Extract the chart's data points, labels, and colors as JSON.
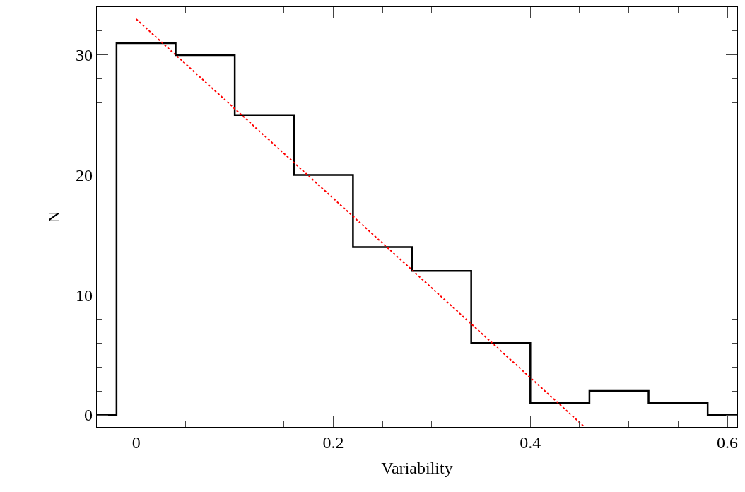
{
  "chart_data": {
    "type": "histogram",
    "xlabel": "Variability",
    "ylabel": "N",
    "bins": [
      -0.04,
      -0.02,
      0.04,
      0.1,
      0.16,
      0.22,
      0.28,
      0.34,
      0.4,
      0.46,
      0.52,
      0.58,
      0.61
    ],
    "values": [
      0,
      31,
      30,
      25,
      20,
      14,
      12,
      6,
      1,
      2,
      1,
      0
    ],
    "color": "#000000",
    "series": [
      {
        "type": "line",
        "x": [
          0,
          0.455
        ],
        "values": [
          33,
          -1
        ],
        "color": "#ff0000",
        "line_style": "dotted"
      }
    ],
    "xlim": [
      -0.04,
      0.61
    ],
    "ylim": [
      -1,
      34
    ],
    "xticks": [
      0,
      {
        "value": 0.05,
        "label": null
      },
      {
        "value": 0.1,
        "label": null
      },
      {
        "value": 0.15,
        "label": null
      },
      0.2,
      {
        "value": 0.25,
        "label": null
      },
      {
        "value": 0.3,
        "label": null
      },
      {
        "value": 0.35,
        "label": null
      },
      0.4,
      {
        "value": 0.45,
        "label": null
      },
      {
        "value": 0.5,
        "label": null
      },
      {
        "value": 0.55,
        "label": null
      },
      0.6
    ],
    "yticks": [
      0,
      {
        "value": 2,
        "label": null
      },
      {
        "value": 4,
        "label": null
      },
      {
        "value": 6,
        "label": null
      },
      {
        "value": 8,
        "label": null
      },
      10,
      {
        "value": 12,
        "label": null
      },
      {
        "value": 14,
        "label": null
      },
      {
        "value": 16,
        "label": null
      },
      {
        "value": 18,
        "label": null
      },
      20,
      {
        "value": 22,
        "label": null
      },
      {
        "value": 24,
        "label": null
      },
      {
        "value": 26,
        "label": null
      },
      {
        "value": 28,
        "label": null
      },
      30,
      {
        "value": 32,
        "label": null
      }
    ]
  }
}
